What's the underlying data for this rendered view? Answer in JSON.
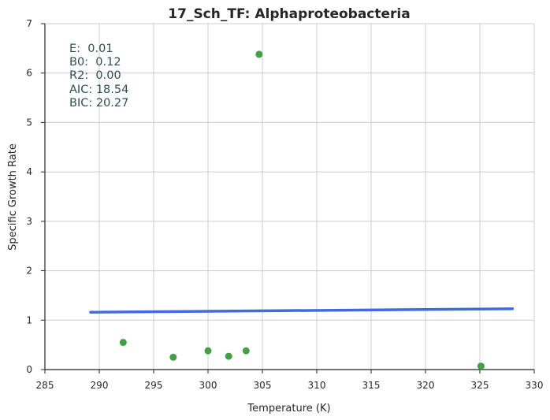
{
  "chart_data": {
    "type": "scatter",
    "title": "17_Sch_TF: Alphaproteobacteria",
    "xlabel": "Temperature (K)",
    "ylabel": "Specific Growth Rate",
    "xlim": [
      285,
      330
    ],
    "ylim": [
      0,
      7
    ],
    "x_ticks": [
      "285",
      "290",
      "295",
      "300",
      "305",
      "310",
      "315",
      "320",
      "325",
      "330"
    ],
    "y_ticks": [
      "0",
      "1",
      "2",
      "3",
      "4",
      "5",
      "6",
      "7"
    ],
    "grid": true,
    "series": [
      {
        "kind": "points",
        "color": "#43a047",
        "points": [
          {
            "x": 292.2,
            "y": 0.55
          },
          {
            "x": 296.8,
            "y": 0.25
          },
          {
            "x": 300.0,
            "y": 0.38
          },
          {
            "x": 301.9,
            "y": 0.27
          },
          {
            "x": 303.5,
            "y": 0.38
          },
          {
            "x": 304.7,
            "y": 6.38
          },
          {
            "x": 325.1,
            "y": 0.07
          }
        ]
      },
      {
        "kind": "fit-line",
        "color": "#4169e1",
        "points": [
          {
            "x": 289.2,
            "y": 1.16
          },
          {
            "x": 328.0,
            "y": 1.23
          }
        ]
      }
    ],
    "annotation": [
      "E:  0.01",
      "B0:  0.12",
      "R2:  0.00",
      "AIC: 18.54",
      "BIC: 20.27"
    ]
  }
}
